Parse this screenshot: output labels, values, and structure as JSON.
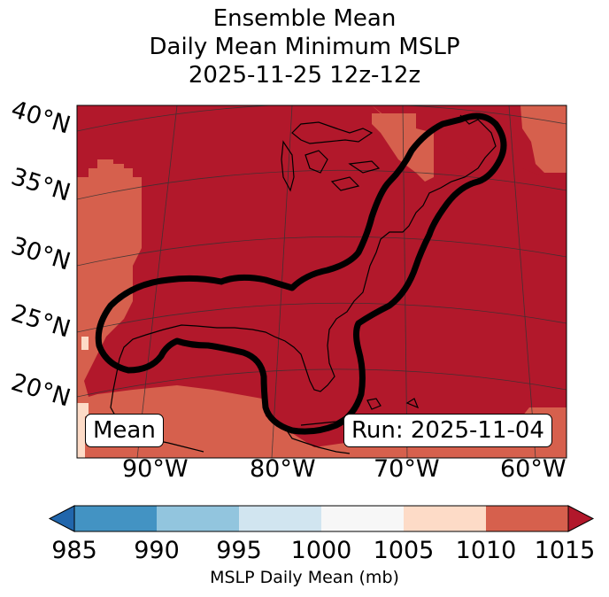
{
  "title": {
    "line1": "Ensemble Mean",
    "line2": "Daily Mean Minimum MSLP",
    "line3": "2025-11-25 12z-12z"
  },
  "map": {
    "lat_labels": [
      "40°N",
      "35°N",
      "30°N",
      "25°N",
      "20°N"
    ],
    "lon_labels": [
      "90°W",
      "80°W",
      "70°W",
      "60°W"
    ],
    "badge_left": "Mean",
    "badge_right": "Run: 2025-11-04"
  },
  "colorbar": {
    "ticks": [
      "985",
      "990",
      "995",
      "1000",
      "1005",
      "1010",
      "1015"
    ],
    "label": "MSLP Daily Mean (mb)",
    "colors": {
      "under": "#2166ac",
      "985-990": "#4393c3",
      "990-995": "#92c5de",
      "995-1000": "#d1e5f0",
      "1000-1005": "#f7f7f7",
      "1005-1010": "#fddbc7",
      "1010-1015": "#d6604d",
      "over": "#b2182b"
    }
  }
}
